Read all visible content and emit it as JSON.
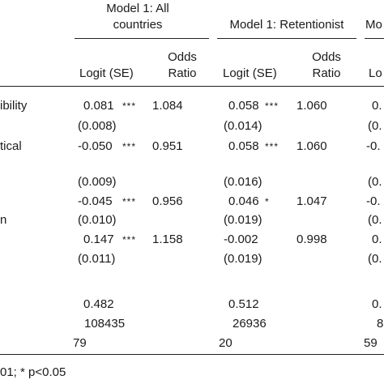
{
  "header": {
    "model1_all_line1": "Model 1: All",
    "model1_all_line2": "countries",
    "model1_ret": "Model 1: Retentionist",
    "model_next_partial": "Mo"
  },
  "subheader": {
    "logit_se": "Logit (SE)",
    "odds_line1": "Odds",
    "odds_line2": "Ratio",
    "next_partial": "Lo"
  },
  "row_labels": {
    "r1": "ibility",
    "r2": "tical",
    "r4": "n"
  },
  "rows": [
    {
      "a_logit": "0.081",
      "a_stars": "***",
      "a_or": "1.084",
      "b_logit": "0.058",
      "b_stars": "***",
      "b_or": "1.060",
      "c_partial": "0."
    },
    {
      "a_se": "(0.008)",
      "b_se": "(0.014)",
      "c_partial": "(0."
    },
    {
      "a_logit": "-0.050",
      "a_stars": "***",
      "a_or": "0.951",
      "b_logit": "0.058",
      "b_stars": "***",
      "b_or": "1.060",
      "c_partial": "-0."
    },
    {
      "a_se": "(0.009)",
      "b_se": "(0.016)",
      "c_partial": "(0."
    },
    {
      "a_logit": "-0.045",
      "a_stars": "***",
      "a_or": "0.956",
      "b_logit": "0.046",
      "b_stars": "*",
      "b_or": "1.047",
      "c_partial": "-0."
    },
    {
      "a_se": "(0.010)",
      "b_se": "(0.019)",
      "c_partial": "(0."
    },
    {
      "a_logit": "0.147",
      "a_stars": "***",
      "a_or": "1.158",
      "b_logit": "-0.002",
      "b_stars": "",
      "b_or": "0.998",
      "c_partial": "0."
    },
    {
      "a_se": "(0.011)",
      "b_se": "(0.019)",
      "c_partial": "(0."
    }
  ],
  "summary": {
    "r2_a": "0.482",
    "r2_b": "0.512",
    "r2_c": "0.",
    "n_a": "108435",
    "n_b": "26936",
    "n_c": "8",
    "k_a": "79",
    "k_b": "20",
    "k_c": "59"
  },
  "footnote": "01; * p<0.05"
}
